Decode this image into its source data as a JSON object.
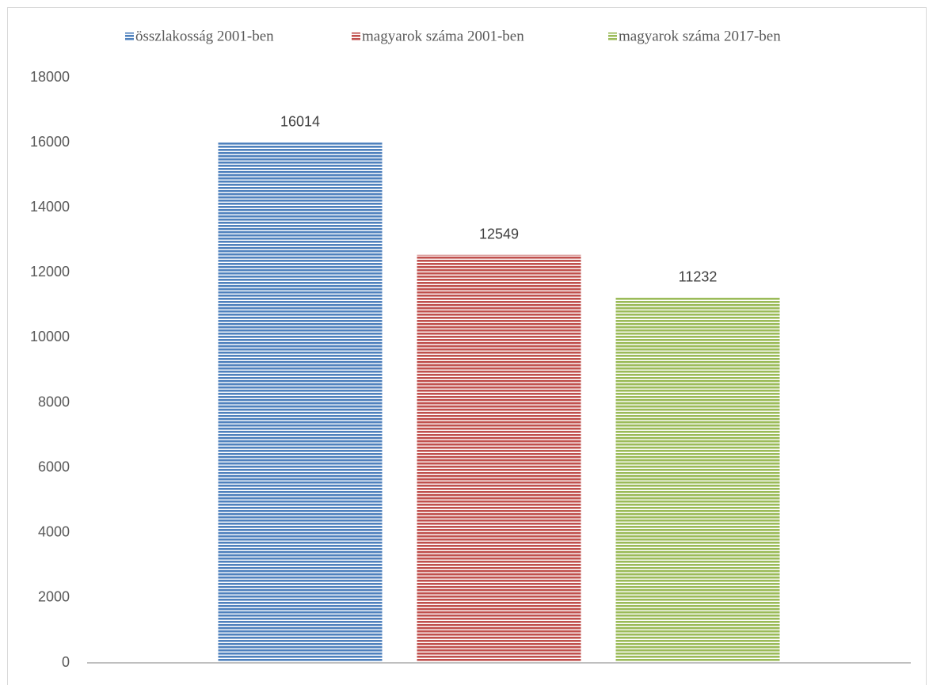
{
  "chart_data": {
    "type": "bar",
    "categories": [
      null
    ],
    "series": [
      {
        "name": "összlakosság 2001-ben",
        "color": "#4f81bd",
        "values": [
          16014
        ]
      },
      {
        "name": "magyarok száma 2001-ben",
        "color": "#c0504d",
        "values": [
          12549
        ]
      },
      {
        "name": "magyarok száma 2017-ben",
        "color": "#9bbb59",
        "values": [
          11232
        ]
      }
    ],
    "ylim": [
      0,
      18000
    ],
    "yticks": [
      0,
      2000,
      4000,
      6000,
      8000,
      10000,
      12000,
      14000,
      16000,
      18000
    ],
    "grid": false,
    "legend": "top",
    "data_labels": true
  }
}
